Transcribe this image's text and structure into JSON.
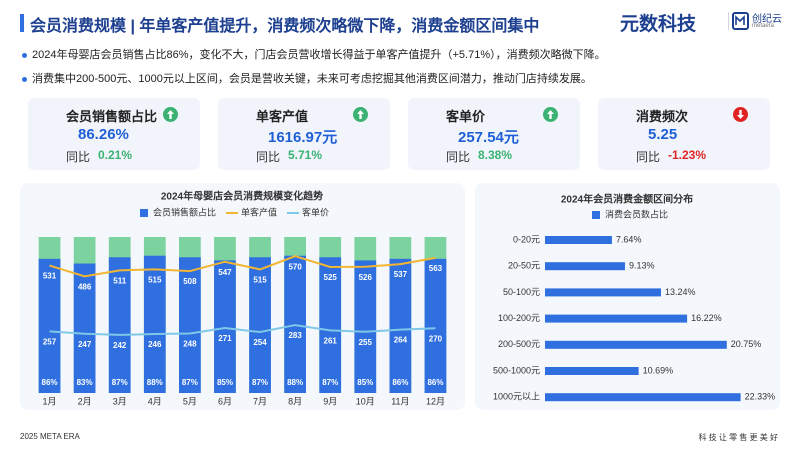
{
  "header": {
    "title": "会员消费规模 | 年单客产值提升，消费频次略微下降，消费金额区间集中",
    "brand": "元数科技",
    "sub_brand": "创纪云",
    "sub_brand_en": "metaera"
  },
  "bullets": [
    "2024年母婴店会员销售占比86%，变化不大，门店会员营收增长得益于单客产值提升（+5.71%），消费频次略微下降。",
    "消费集中200-500元、1000元以上区间，会员是营收关键，未来可考虑挖掘其他消费区间潜力，推动门店持续发展。"
  ],
  "kpis": [
    {
      "label": "会员销售额占比",
      "value": "86.26%",
      "yoy_label": "同比",
      "change": "0.21%",
      "trend": "up"
    },
    {
      "label": "单客产值",
      "value": "1616.97元",
      "yoy_label": "同比",
      "change": "5.71%",
      "trend": "up"
    },
    {
      "label": "客单价",
      "value": "257.54元",
      "yoy_label": "同比",
      "change": "8.38%",
      "trend": "up"
    },
    {
      "label": "消费频次",
      "value": "5.25",
      "yoy_label": "同比",
      "change": "-1.23%",
      "trend": "down"
    }
  ],
  "footer": {
    "left": "2025 META ERA",
    "right": "科 技 让 零 售 更 美 好"
  },
  "chart_data": [
    {
      "type": "bar",
      "title": "2024年母婴店会员消费规模变化趋势",
      "categories": [
        "1月",
        "2月",
        "3月",
        "4月",
        "5月",
        "6月",
        "7月",
        "8月",
        "9月",
        "10月",
        "11月",
        "12月"
      ],
      "ylim": [
        0,
        100
      ],
      "y2lim": [
        0,
        650
      ],
      "series": [
        {
          "name": "会员销售额占比",
          "color": "#2f6fe0",
          "values": [
            86,
            83,
            87,
            88,
            87,
            85,
            87,
            88,
            87,
            85,
            86,
            86
          ],
          "value_labels": [
            "86%",
            "83%",
            "87%",
            "88%",
            "87%",
            "85%",
            "87%",
            "88%",
            "87%",
            "85%",
            "86%",
            "86%"
          ]
        },
        {
          "name": "单客产值",
          "color": "#f2b632",
          "type": "line",
          "axis": "y2",
          "values": [
            531,
            486,
            511,
            515,
            508,
            547,
            515,
            570,
            525,
            526,
            537,
            563
          ]
        },
        {
          "name": "客单价",
          "color": "#7fc8e8",
          "type": "line",
          "axis": "y2",
          "values": [
            257,
            247,
            242,
            246,
            248,
            271,
            254,
            283,
            261,
            255,
            264,
            270
          ]
        }
      ]
    },
    {
      "type": "barh",
      "title": "2024年会员消费金额区间分布",
      "categories": [
        "0-20元",
        "20-50元",
        "50-100元",
        "100-200元",
        "200-500元",
        "500-1000元",
        "1000元以上"
      ],
      "xlim": [
        0,
        25
      ],
      "series": [
        {
          "name": "消费会员数占比",
          "color": "#2f6fe0",
          "values": [
            7.64,
            9.13,
            13.24,
            16.22,
            20.75,
            10.69,
            22.33
          ],
          "value_labels": [
            "7.64%",
            "9.13%",
            "13.24%",
            "16.22%",
            "20.75%",
            "10.69%",
            "22.33%"
          ]
        }
      ]
    }
  ]
}
